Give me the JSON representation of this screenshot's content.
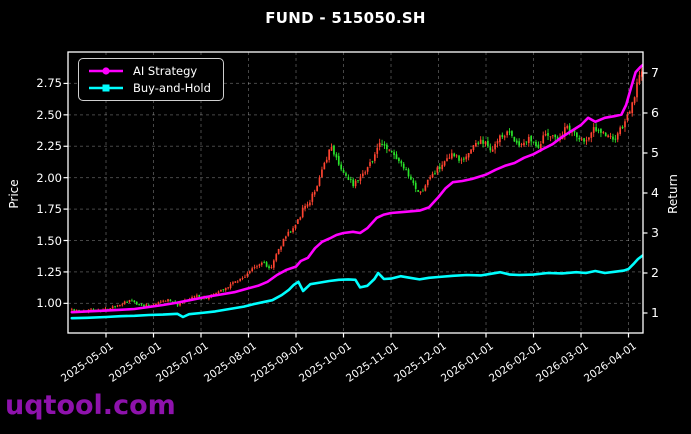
{
  "title": "FUND - 515050.SH",
  "legend": {
    "items": [
      {
        "label": "AI Strategy",
        "color": "#ff00ff",
        "marker": "circle"
      },
      {
        "label": "Buy-and-Hold",
        "color": "#00ffff",
        "marker": "square"
      }
    ]
  },
  "watermark": {
    "text": "uqtool.com",
    "color": "#8e12ac"
  },
  "colors": {
    "background": "#000000",
    "axis": "#ffffff",
    "grid": "rgba(255,255,255,0.28)",
    "candle_up": "#ff4430",
    "candle_down": "#2be52b",
    "ai_line": "#ff00ff",
    "bh_line": "#00ffff"
  },
  "axes": {
    "left": {
      "label": "Price",
      "tick_labels": [
        "1.00",
        "1.25",
        "1.50",
        "1.75",
        "2.00",
        "2.25",
        "2.50",
        "2.75"
      ],
      "tick_values": [
        1.0,
        1.25,
        1.5,
        1.75,
        2.0,
        2.25,
        2.5,
        2.75
      ],
      "range": [
        0.764,
        3.0
      ]
    },
    "right": {
      "label": "Return",
      "tick_labels": [
        "1",
        "2",
        "3",
        "4",
        "5",
        "6",
        "7"
      ],
      "tick_values": [
        1,
        2,
        3,
        4,
        5,
        6,
        7
      ],
      "range": [
        0.5,
        7.525
      ]
    },
    "x": {
      "tick_labels": [
        "2025-05-01",
        "2025-06-01",
        "2025-07-01",
        "2025-08-01",
        "2025-09-01",
        "2025-10-01",
        "2025-11-01",
        "2025-12-01",
        "2026-01-01",
        "2026-02-01",
        "2026-03-01",
        "2026-04-01"
      ],
      "range_months": [
        -0.8,
        11.305
      ]
    }
  },
  "chart_data": {
    "type": "candlestick+line",
    "title": "FUND - 515050.SH",
    "x_unit": "months since 2025-05-01",
    "grid": "dashed, both axes",
    "legend_position": "upper left",
    "series": [
      {
        "name": "AI Strategy",
        "type": "line",
        "axis": "return",
        "color": "#ff00ff",
        "points": [
          [
            -0.72,
            1.02
          ],
          [
            -0.4,
            1.04
          ],
          [
            0,
            1.06
          ],
          [
            0.3,
            1.08
          ],
          [
            0.6,
            1.1
          ],
          [
            0.9,
            1.15
          ],
          [
            1.2,
            1.2
          ],
          [
            1.5,
            1.26
          ],
          [
            1.8,
            1.33
          ],
          [
            2.1,
            1.4
          ],
          [
            2.4,
            1.46
          ],
          [
            2.7,
            1.52
          ],
          [
            3.0,
            1.62
          ],
          [
            3.2,
            1.68
          ],
          [
            3.4,
            1.78
          ],
          [
            3.6,
            1.95
          ],
          [
            3.8,
            2.08
          ],
          [
            4.0,
            2.16
          ],
          [
            4.1,
            2.3
          ],
          [
            4.25,
            2.38
          ],
          [
            4.4,
            2.62
          ],
          [
            4.55,
            2.78
          ],
          [
            4.7,
            2.86
          ],
          [
            4.85,
            2.95
          ],
          [
            5.0,
            3.0
          ],
          [
            5.2,
            3.03
          ],
          [
            5.35,
            3.0
          ],
          [
            5.5,
            3.12
          ],
          [
            5.7,
            3.38
          ],
          [
            5.85,
            3.46
          ],
          [
            6.0,
            3.5
          ],
          [
            6.3,
            3.53
          ],
          [
            6.6,
            3.56
          ],
          [
            6.8,
            3.64
          ],
          [
            7.0,
            3.9
          ],
          [
            7.15,
            4.12
          ],
          [
            7.3,
            4.27
          ],
          [
            7.5,
            4.3
          ],
          [
            7.7,
            4.35
          ],
          [
            8.0,
            4.46
          ],
          [
            8.2,
            4.58
          ],
          [
            8.4,
            4.68
          ],
          [
            8.6,
            4.75
          ],
          [
            8.8,
            4.88
          ],
          [
            9.0,
            4.97
          ],
          [
            9.2,
            5.1
          ],
          [
            9.4,
            5.22
          ],
          [
            9.6,
            5.4
          ],
          [
            9.8,
            5.55
          ],
          [
            10.0,
            5.7
          ],
          [
            10.15,
            5.88
          ],
          [
            10.3,
            5.78
          ],
          [
            10.5,
            5.88
          ],
          [
            10.7,
            5.92
          ],
          [
            10.85,
            5.96
          ],
          [
            10.95,
            6.2
          ],
          [
            11.05,
            6.62
          ],
          [
            11.15,
            7.02
          ],
          [
            11.25,
            7.15
          ],
          [
            11.3,
            7.2
          ]
        ]
      },
      {
        "name": "Buy-and-Hold",
        "type": "line",
        "axis": "return",
        "color": "#00ffff",
        "points": [
          [
            -0.72,
            0.87
          ],
          [
            -0.4,
            0.88
          ],
          [
            0,
            0.9
          ],
          [
            0.3,
            0.92
          ],
          [
            0.6,
            0.93
          ],
          [
            0.9,
            0.95
          ],
          [
            1.2,
            0.96
          ],
          [
            1.5,
            0.98
          ],
          [
            1.62,
            0.9
          ],
          [
            1.75,
            0.97
          ],
          [
            2.0,
            1.0
          ],
          [
            2.3,
            1.04
          ],
          [
            2.6,
            1.1
          ],
          [
            2.9,
            1.16
          ],
          [
            3.1,
            1.22
          ],
          [
            3.3,
            1.27
          ],
          [
            3.5,
            1.32
          ],
          [
            3.7,
            1.45
          ],
          [
            3.85,
            1.58
          ],
          [
            3.95,
            1.7
          ],
          [
            4.05,
            1.78
          ],
          [
            4.15,
            1.55
          ],
          [
            4.3,
            1.72
          ],
          [
            4.5,
            1.76
          ],
          [
            4.7,
            1.8
          ],
          [
            4.9,
            1.83
          ],
          [
            5.1,
            1.84
          ],
          [
            5.25,
            1.83
          ],
          [
            5.35,
            1.64
          ],
          [
            5.5,
            1.68
          ],
          [
            5.65,
            1.85
          ],
          [
            5.73,
            2.0
          ],
          [
            5.85,
            1.85
          ],
          [
            6.0,
            1.86
          ],
          [
            6.2,
            1.92
          ],
          [
            6.4,
            1.88
          ],
          [
            6.6,
            1.84
          ],
          [
            6.8,
            1.88
          ],
          [
            7.0,
            1.9
          ],
          [
            7.3,
            1.93
          ],
          [
            7.6,
            1.95
          ],
          [
            7.9,
            1.94
          ],
          [
            8.1,
            1.98
          ],
          [
            8.3,
            2.02
          ],
          [
            8.5,
            1.96
          ],
          [
            8.7,
            1.95
          ],
          [
            9.0,
            1.96
          ],
          [
            9.3,
            2.0
          ],
          [
            9.6,
            1.99
          ],
          [
            9.9,
            2.02
          ],
          [
            10.1,
            2.0
          ],
          [
            10.3,
            2.05
          ],
          [
            10.5,
            2.0
          ],
          [
            10.7,
            2.03
          ],
          [
            10.9,
            2.06
          ],
          [
            11.0,
            2.1
          ],
          [
            11.1,
            2.22
          ],
          [
            11.2,
            2.35
          ],
          [
            11.3,
            2.44
          ]
        ]
      },
      {
        "name": "FUND 515050.SH daily candles",
        "type": "candlestick",
        "axis": "price",
        "up_color": "#ff4430",
        "down_color": "#2be52b",
        "candle_count": 238,
        "t_start": -0.72,
        "t_end": 11.28,
        "seed": 42,
        "close_noise": 0.022,
        "open_noise": 0.01,
        "wick_noise": 0.015,
        "close_path": [
          [
            -0.72,
            0.95
          ],
          [
            -0.5,
            0.93
          ],
          [
            -0.3,
            0.96
          ],
          [
            -0.1,
            0.94
          ],
          [
            0.1,
            0.96
          ],
          [
            0.3,
            0.99
          ],
          [
            0.5,
            1.02
          ],
          [
            0.7,
            0.99
          ],
          [
            0.9,
            0.98
          ],
          [
            1.1,
            1.01
          ],
          [
            1.3,
            1.03
          ],
          [
            1.5,
            0.99
          ],
          [
            1.7,
            1.02
          ],
          [
            1.9,
            1.06
          ],
          [
            2.1,
            1.04
          ],
          [
            2.3,
            1.08
          ],
          [
            2.5,
            1.12
          ],
          [
            2.7,
            1.17
          ],
          [
            2.9,
            1.21
          ],
          [
            3.1,
            1.28
          ],
          [
            3.3,
            1.33
          ],
          [
            3.45,
            1.27
          ],
          [
            3.6,
            1.4
          ],
          [
            3.8,
            1.55
          ],
          [
            4.0,
            1.63
          ],
          [
            4.15,
            1.75
          ],
          [
            4.3,
            1.82
          ],
          [
            4.45,
            1.95
          ],
          [
            4.6,
            2.1
          ],
          [
            4.74,
            2.25
          ],
          [
            4.9,
            2.12
          ],
          [
            5.05,
            2.0
          ],
          [
            5.2,
            1.95
          ],
          [
            5.35,
            2.02
          ],
          [
            5.5,
            2.08
          ],
          [
            5.65,
            2.18
          ],
          [
            5.8,
            2.28
          ],
          [
            5.95,
            2.22
          ],
          [
            6.1,
            2.16
          ],
          [
            6.3,
            2.05
          ],
          [
            6.45,
            1.95
          ],
          [
            6.6,
            1.86
          ],
          [
            6.75,
            1.96
          ],
          [
            6.9,
            2.04
          ],
          [
            7.1,
            2.1
          ],
          [
            7.3,
            2.18
          ],
          [
            7.5,
            2.12
          ],
          [
            7.7,
            2.24
          ],
          [
            7.9,
            2.3
          ],
          [
            8.1,
            2.22
          ],
          [
            8.3,
            2.32
          ],
          [
            8.5,
            2.36
          ],
          [
            8.7,
            2.26
          ],
          [
            8.9,
            2.32
          ],
          [
            9.1,
            2.26
          ],
          [
            9.3,
            2.36
          ],
          [
            9.5,
            2.3
          ],
          [
            9.7,
            2.4
          ],
          [
            9.9,
            2.34
          ],
          [
            10.1,
            2.28
          ],
          [
            10.3,
            2.4
          ],
          [
            10.5,
            2.34
          ],
          [
            10.7,
            2.3
          ],
          [
            10.9,
            2.42
          ],
          [
            11.0,
            2.5
          ],
          [
            11.1,
            2.62
          ],
          [
            11.2,
            2.76
          ],
          [
            11.28,
            2.86
          ]
        ]
      }
    ]
  }
}
